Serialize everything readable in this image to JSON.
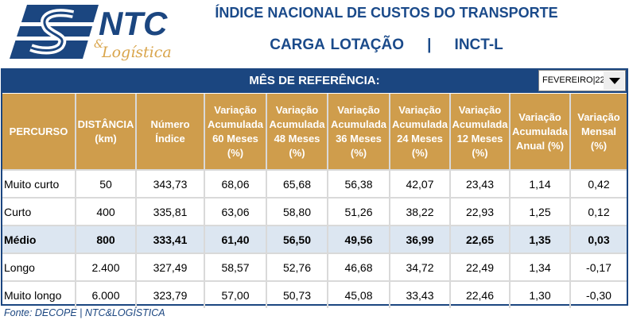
{
  "logo": {
    "text": "NTC & Logística",
    "brand_blue": "#1b4680",
    "brand_gold": "#d9a54c"
  },
  "header": {
    "title": "ÍNDICE NACIONAL DE CUSTOS DO TRANSPORTE",
    "subtitle": "CARGA LOTAÇÃO    |    INCT-L"
  },
  "reference": {
    "label": "MÊS DE REFERÊNCIA:",
    "selected": "FEVEREIRO|22"
  },
  "table": {
    "columns": [
      [
        "PERCURSO"
      ],
      [
        "DISTÂNCIA",
        "(km)"
      ],
      [
        "Número",
        "Índice"
      ],
      [
        "Variação",
        "Acumulada",
        "60 Meses",
        "(%)"
      ],
      [
        "Variação",
        "Acumulada",
        "48 Meses",
        "(%)"
      ],
      [
        "Variação",
        "Acumulada",
        "36 Meses",
        "(%)"
      ],
      [
        "Variação",
        "Acumulada",
        "24 Meses",
        "(%)"
      ],
      [
        "Variação",
        "Acumulada",
        "12 Meses",
        "(%)"
      ],
      [
        "Variação",
        "Acumulada",
        "Anual  (%)"
      ],
      [
        "Variação",
        "Mensal",
        "(%)"
      ]
    ],
    "rows": [
      [
        "Muito curto",
        "50",
        "343,73",
        "68,06",
        "65,68",
        "56,38",
        "42,07",
        "23,43",
        "1,14",
        "0,42"
      ],
      [
        "Curto",
        "400",
        "335,81",
        "63,06",
        "58,80",
        "51,26",
        "38,22",
        "22,93",
        "1,25",
        "0,12"
      ],
      [
        "Médio",
        "800",
        "333,41",
        "61,40",
        "56,50",
        "49,56",
        "36,99",
        "22,65",
        "1,35",
        "0,03"
      ],
      [
        "Longo",
        "2.400",
        "327,49",
        "58,57",
        "52,76",
        "46,68",
        "34,72",
        "22,49",
        "1,34",
        "-0,17"
      ],
      [
        "Muito longo",
        "6.000",
        "323,79",
        "57,00",
        "50,73",
        "45,08",
        "33,43",
        "22,46",
        "1,30",
        "-0,30"
      ]
    ],
    "highlight_row": 2
  },
  "footer": {
    "source": "Fonte: DECOPE | NTC&LOGÍSTICA"
  }
}
